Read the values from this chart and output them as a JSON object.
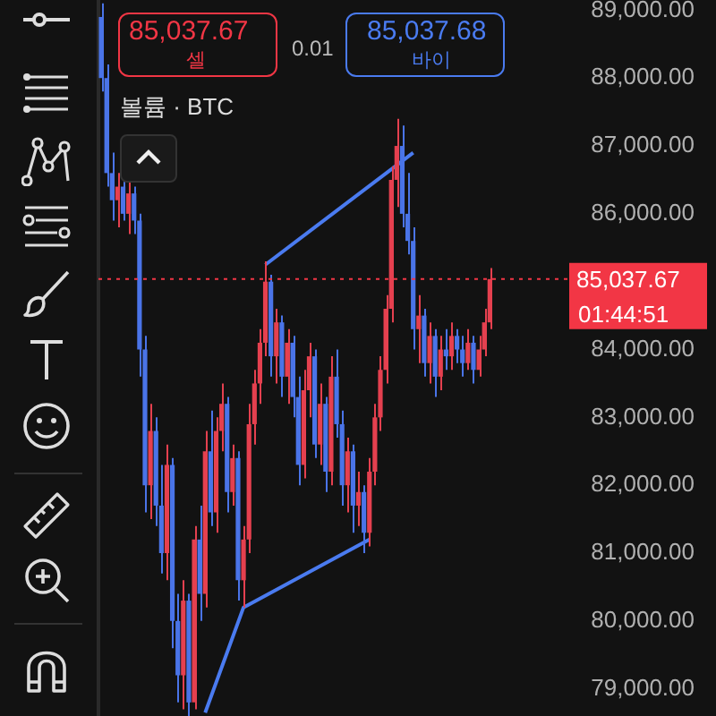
{
  "chart_data": {
    "type": "candlestick",
    "categories": [
      null,
      null,
      null,
      null,
      null,
      null,
      null,
      null,
      null,
      null,
      null,
      null,
      null,
      null,
      null,
      null,
      null,
      null,
      null,
      null,
      null,
      null,
      null,
      null,
      null,
      null,
      null,
      null,
      null,
      null,
      null,
      null,
      null,
      null,
      null,
      null,
      null,
      null,
      null,
      null,
      null,
      null,
      null,
      null,
      null,
      null,
      null,
      null,
      null,
      null,
      null,
      null,
      null,
      null,
      null,
      null,
      null,
      null,
      null,
      null,
      null,
      null,
      null,
      null,
      null,
      null,
      null,
      null,
      null,
      null,
      null,
      null,
      null,
      null,
      null,
      null,
      null,
      null,
      null,
      null,
      null,
      null,
      null,
      null,
      null,
      null
    ],
    "ohlc": [
      [
        88900,
        89100,
        87800,
        88000
      ],
      [
        88000,
        88200,
        86400,
        86600
      ],
      [
        86600,
        86900,
        85900,
        86200
      ],
      [
        86200,
        86600,
        85800,
        86400
      ],
      [
        86400,
        86500,
        85900,
        86000
      ],
      [
        86000,
        86500,
        85700,
        86300
      ],
      [
        86300,
        86400,
        85700,
        85900
      ],
      [
        85900,
        86000,
        83600,
        84000
      ],
      [
        84000,
        84200,
        81600,
        82000
      ],
      [
        82000,
        83200,
        81500,
        82800
      ],
      [
        82800,
        83000,
        81400,
        81700
      ],
      [
        81700,
        82300,
        80700,
        81000
      ],
      [
        81000,
        82600,
        80600,
        82300
      ],
      [
        82300,
        82400,
        79600,
        80000
      ],
      [
        80000,
        80400,
        78800,
        79200
      ],
      [
        79200,
        80600,
        78700,
        80300
      ],
      [
        80300,
        80400,
        78600,
        78800
      ],
      [
        78800,
        81400,
        78700,
        81200
      ],
      [
        81200,
        81700,
        80000,
        80400
      ],
      [
        80400,
        82800,
        80200,
        82500
      ],
      [
        82500,
        83100,
        81400,
        81600
      ],
      [
        81600,
        83000,
        81300,
        82800
      ],
      [
        82800,
        83500,
        82500,
        83200
      ],
      [
        83200,
        83300,
        81600,
        81900
      ],
      [
        81900,
        82600,
        81700,
        82400
      ],
      [
        82400,
        82500,
        80300,
        80600
      ],
      [
        80600,
        81400,
        80200,
        81200
      ],
      [
        81200,
        83200,
        81000,
        82900
      ],
      [
        82900,
        83700,
        82600,
        83500
      ],
      [
        83500,
        84300,
        83200,
        84100
      ],
      [
        84100,
        85300,
        83900,
        85000
      ],
      [
        85000,
        85100,
        83600,
        83900
      ],
      [
        83900,
        84600,
        83500,
        84400
      ],
      [
        84400,
        84500,
        83300,
        83600
      ],
      [
        83600,
        84300,
        83200,
        84100
      ],
      [
        84100,
        84200,
        83000,
        83300
      ],
      [
        83300,
        83600,
        82000,
        82300
      ],
      [
        82300,
        83700,
        82100,
        83400
      ],
      [
        83400,
        84100,
        83000,
        83900
      ],
      [
        83900,
        84000,
        82400,
        82600
      ],
      [
        82600,
        83500,
        82300,
        83200
      ],
      [
        83200,
        83300,
        81900,
        82200
      ],
      [
        82200,
        83900,
        82000,
        83600
      ],
      [
        83600,
        84000,
        82700,
        82900
      ],
      [
        82900,
        83100,
        81700,
        82000
      ],
      [
        82000,
        82700,
        81600,
        82500
      ],
      [
        82500,
        82600,
        81300,
        81700
      ],
      [
        81700,
        82200,
        81400,
        81900
      ],
      [
        81900,
        82000,
        81000,
        81300
      ],
      [
        81300,
        82400,
        81100,
        82200
      ],
      [
        82200,
        83200,
        82000,
        83000
      ],
      [
        83000,
        83900,
        82800,
        83700
      ],
      [
        83700,
        84800,
        83500,
        84600
      ],
      [
        84600,
        86700,
        84400,
        86500
      ],
      [
        86500,
        87400,
        86100,
        87000
      ],
      [
        87000,
        87300,
        85800,
        86000
      ],
      [
        86000,
        86600,
        85400,
        85600
      ],
      [
        85600,
        85800,
        84000,
        84300
      ],
      [
        84300,
        84800,
        83800,
        84500
      ],
      [
        84500,
        84600,
        83600,
        83800
      ],
      [
        83800,
        84400,
        83500,
        84200
      ],
      [
        84200,
        84300,
        83300,
        83600
      ],
      [
        83600,
        84200,
        83400,
        84000
      ],
      [
        84000,
        84300,
        83700,
        83900
      ],
      [
        83900,
        84400,
        83700,
        84200
      ],
      [
        84200,
        84300,
        83800,
        84000
      ],
      [
        84000,
        84200,
        83600,
        83800
      ],
      [
        83800,
        84300,
        83700,
        84100
      ],
      [
        84100,
        84200,
        83500,
        83700
      ],
      [
        83700,
        84200,
        83600,
        84000
      ],
      [
        84000,
        84600,
        83900,
        84400
      ],
      [
        84400,
        85200,
        84300,
        85037.67
      ],
      null,
      null,
      null,
      null,
      null,
      null,
      null,
      null,
      null,
      null,
      null,
      null,
      null,
      null
    ],
    "colors": [
      "#4a74e8",
      "#4a74e8",
      "#4a74e8",
      "#e5404f",
      "#4a74e8",
      "#e5404f",
      "#4a74e8",
      "#4a74e8",
      "#4a74e8",
      "#e5404f",
      "#4a74e8",
      "#4a74e8",
      "#e5404f",
      "#4a74e8",
      "#4a74e8",
      "#e5404f",
      "#4a74e8",
      "#e5404f",
      "#4a74e8",
      "#e5404f",
      "#4a74e8",
      "#e5404f",
      "#e5404f",
      "#4a74e8",
      "#e5404f",
      "#4a74e8",
      "#e5404f",
      "#e5404f",
      "#e5404f",
      "#e5404f",
      "#e5404f",
      "#4a74e8",
      "#e5404f",
      "#4a74e8",
      "#e5404f",
      "#4a74e8",
      "#4a74e8",
      "#e5404f",
      "#e5404f",
      "#4a74e8",
      "#e5404f",
      "#4a74e8",
      "#e5404f",
      "#4a74e8",
      "#4a74e8",
      "#e5404f",
      "#4a74e8",
      "#e5404f",
      "#4a74e8",
      "#e5404f",
      "#e5404f",
      "#e5404f",
      "#e5404f",
      "#e5404f",
      "#e5404f",
      "#4a74e8",
      "#4a74e8",
      "#4a74e8",
      "#e5404f",
      "#4a74e8",
      "#e5404f",
      "#4a74e8",
      "#e5404f",
      "#4a74e8",
      "#e5404f",
      "#4a74e8",
      "#4a74e8",
      "#e5404f",
      "#4a74e8",
      "#e5404f",
      "#e5404f",
      "#e5404f",
      null,
      null,
      null,
      null,
      null,
      null,
      null,
      null,
      null,
      null,
      null,
      null,
      null,
      null
    ],
    "series": [
      {
        "type": "line",
        "color": "#4a7bf0",
        "values": [
          null,
          null,
          null,
          null,
          null,
          null,
          null,
          null,
          null,
          null,
          null,
          null,
          null,
          null,
          null,
          null,
          null,
          null,
          null,
          78650,
          null,
          null,
          null,
          null,
          null,
          null,
          80200,
          null,
          null,
          null,
          null,
          null,
          null,
          null,
          null,
          null,
          null,
          null,
          null,
          null,
          null,
          null,
          null,
          null,
          null,
          null,
          null,
          null,
          null,
          81200,
          null,
          null,
          null,
          null,
          null,
          null,
          null,
          null,
          null,
          null,
          null,
          null,
          null,
          null,
          null,
          null,
          null,
          null,
          null,
          null,
          null,
          null,
          null,
          null,
          null,
          null,
          null,
          null,
          null,
          null,
          null,
          null,
          null,
          null,
          null,
          null
        ]
      },
      {
        "type": "line",
        "color": "#4a7bf0",
        "values": [
          null,
          null,
          null,
          null,
          null,
          null,
          null,
          null,
          null,
          null,
          null,
          null,
          null,
          null,
          null,
          null,
          null,
          null,
          null,
          null,
          null,
          null,
          null,
          null,
          null,
          null,
          null,
          null,
          null,
          null,
          85250,
          null,
          null,
          null,
          null,
          null,
          null,
          null,
          null,
          null,
          null,
          null,
          null,
          null,
          null,
          null,
          null,
          null,
          null,
          null,
          null,
          null,
          null,
          null,
          null,
          null,
          null,
          86900,
          null,
          null,
          null,
          null,
          null,
          null,
          null,
          null,
          null,
          null,
          null,
          null,
          null,
          null,
          null,
          null,
          null,
          null,
          null,
          null,
          null,
          null,
          null,
          null,
          null,
          null,
          null,
          null
        ]
      }
    ],
    "ylim": [
      78600,
      89150
    ],
    "yticks": [
      {
        "value": 79000,
        "label": "79,000.00"
      },
      {
        "value": 80000,
        "label": "80,000.00"
      },
      {
        "value": 81000,
        "label": "81,000.00"
      },
      {
        "value": 82000,
        "label": "82,000.00"
      },
      {
        "value": 83000,
        "label": "83,000.00"
      },
      {
        "value": 84000,
        "label": "84,000.00"
      },
      {
        "value": 86000,
        "label": "86,000.00"
      },
      {
        "value": 87000,
        "label": "87,000.00"
      },
      {
        "value": 88000,
        "label": "88,000.00"
      },
      {
        "value": 89000,
        "label": "89,000.00"
      }
    ],
    "tick_labels": "y",
    "ref_lines": [
      {
        "axis": "y",
        "value": 85037.67,
        "label": "85,037.67",
        "color": "#f23645",
        "line_style": "dotted"
      }
    ],
    "annotations": [
      "85,037.67",
      "셀",
      "0.01",
      "85,037.68",
      "바이",
      "볼륨 · BTC",
      "01:44:51"
    ]
  }
}
